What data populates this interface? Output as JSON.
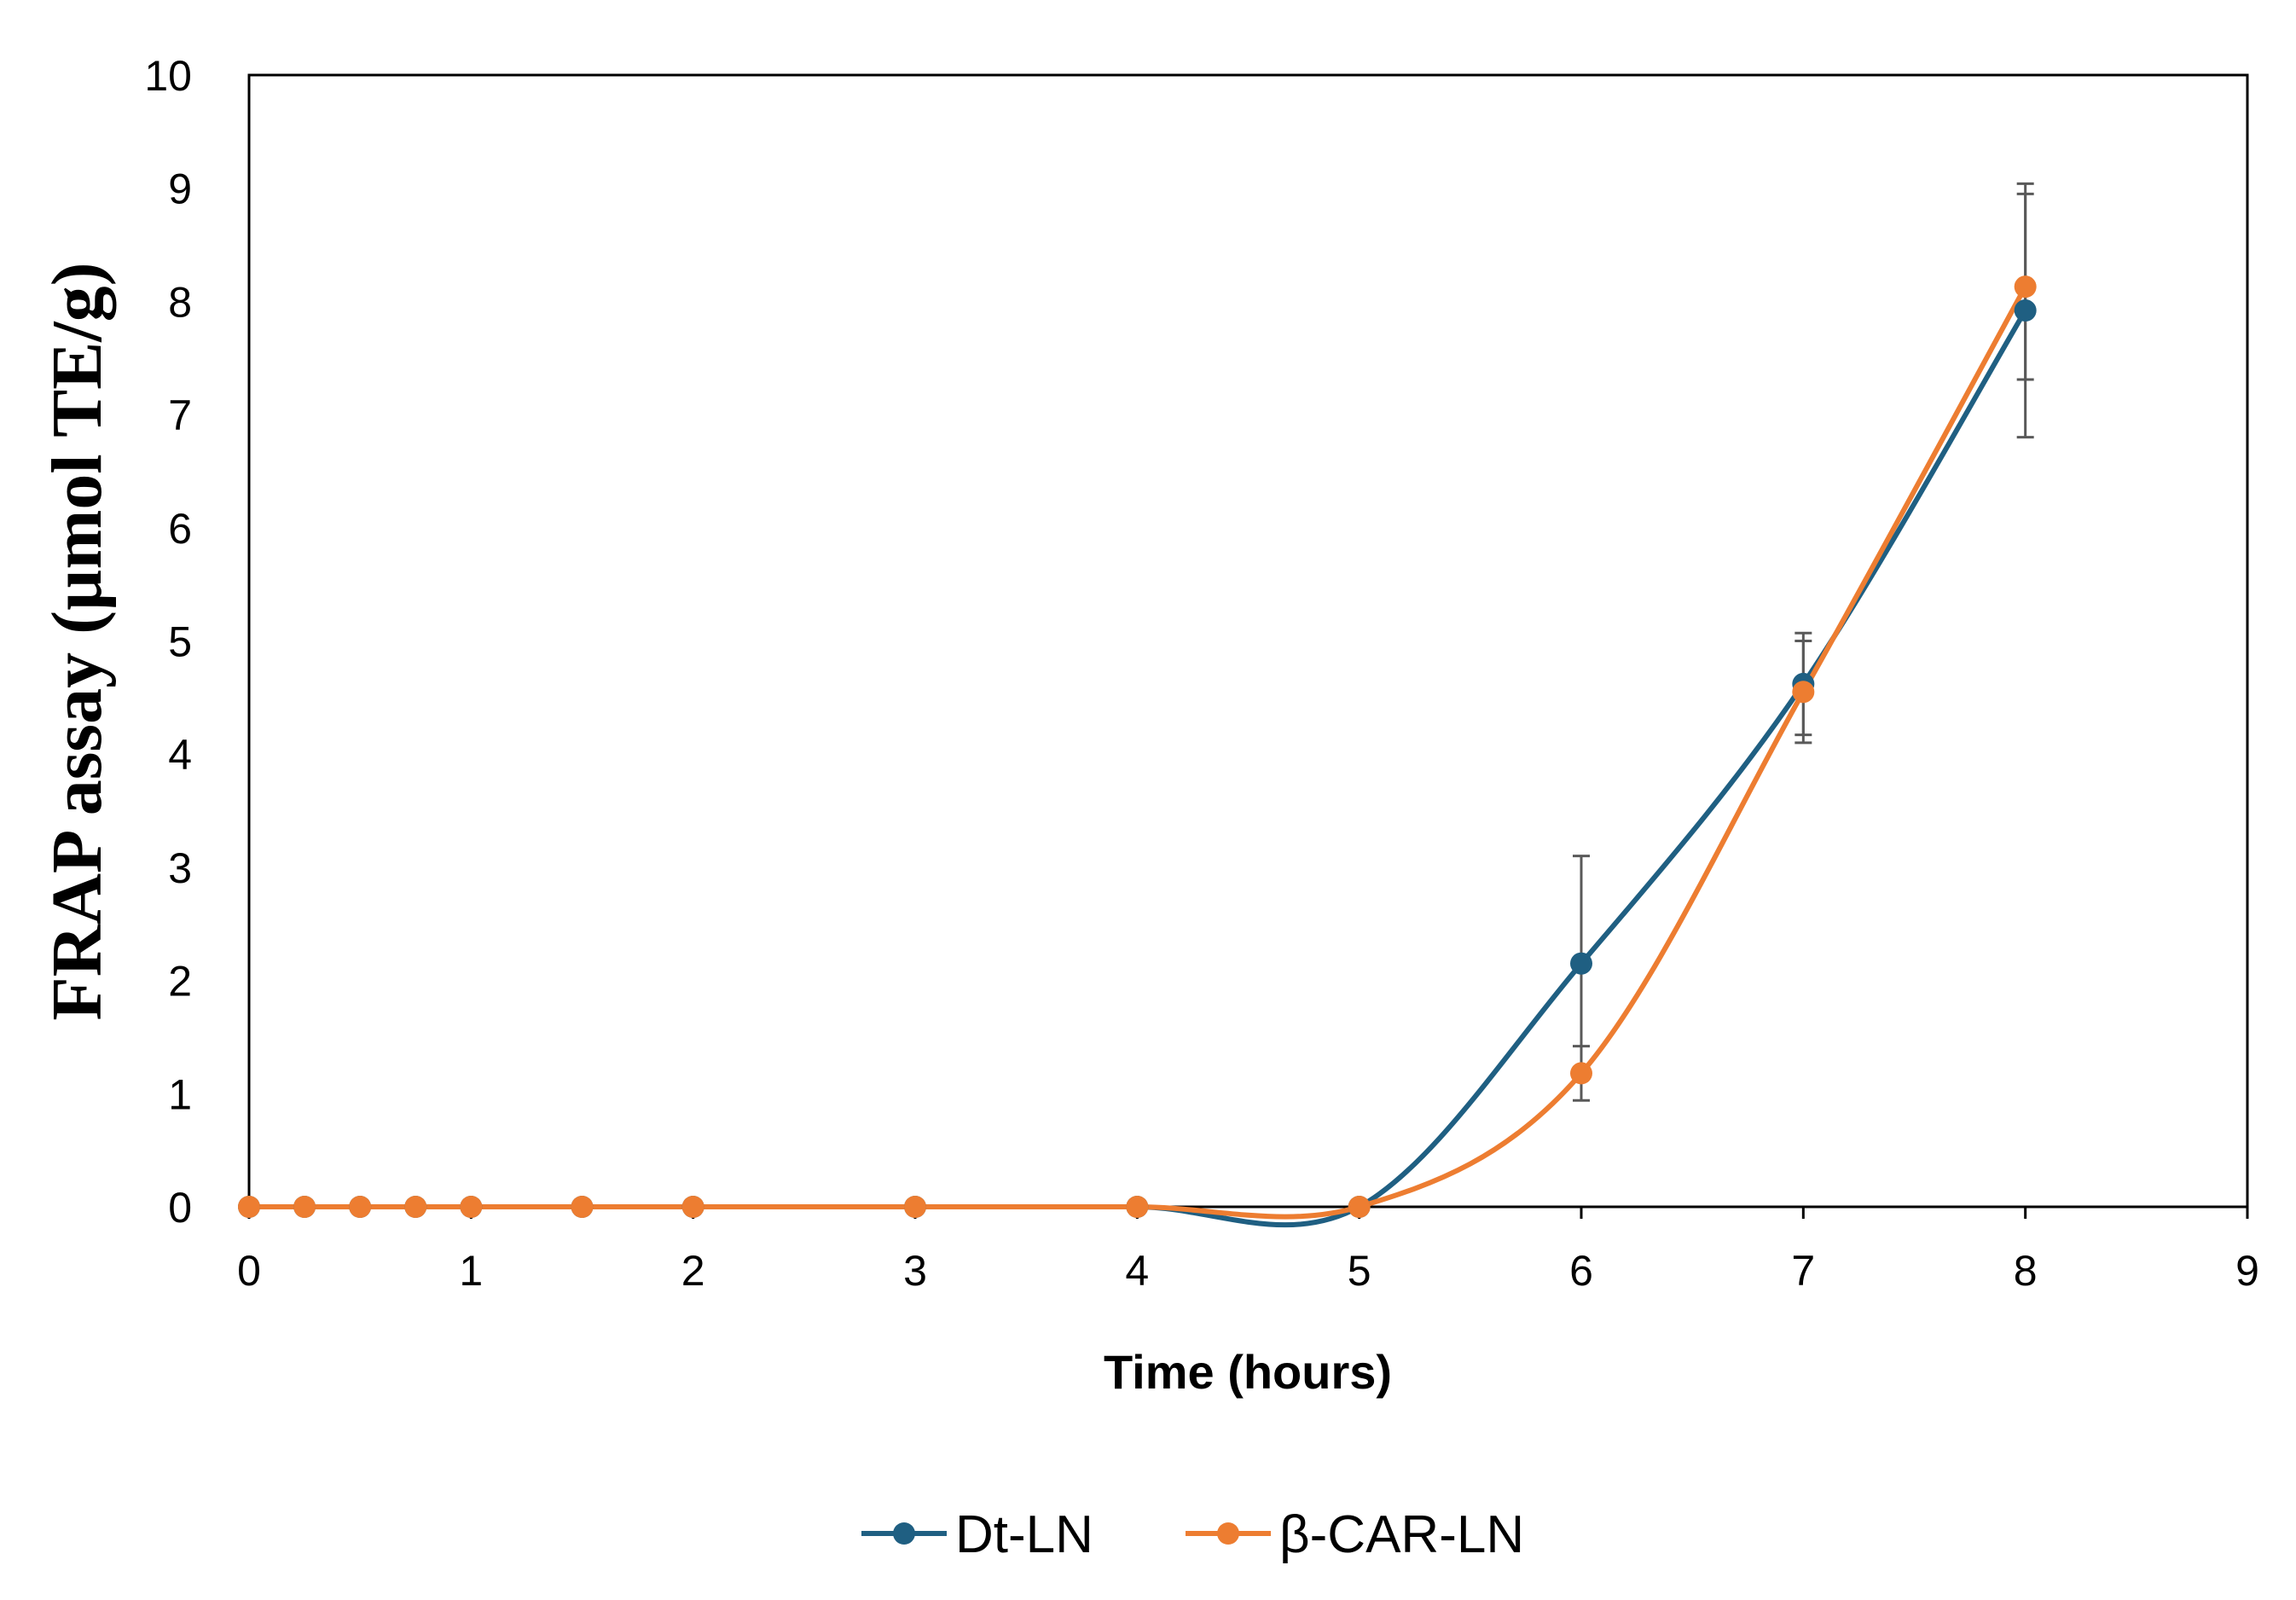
{
  "chart_data": {
    "type": "line",
    "title": "",
    "xlabel": "Time (hours)",
    "ylabel": "FRAP assay (µmol TE/g)",
    "xlim": [
      0,
      9
    ],
    "ylim": [
      0,
      10
    ],
    "xticks": [
      0,
      1,
      2,
      3,
      4,
      5,
      6,
      7,
      8,
      9
    ],
    "yticks": [
      0,
      1,
      2,
      3,
      4,
      5,
      6,
      7,
      8,
      9,
      10
    ],
    "grid": false,
    "smooth": true,
    "legend_position": "bottom",
    "series": [
      {
        "name": "Dt-LN",
        "color": "#1f5f82",
        "x": [
          0,
          0.25,
          0.5,
          0.75,
          1,
          1.5,
          2,
          3,
          4,
          5,
          6,
          7,
          8
        ],
        "y": [
          0,
          0,
          0,
          0,
          0,
          0,
          0,
          0,
          0,
          0,
          2.15,
          4.62,
          7.92
        ],
        "error": [
          null,
          null,
          null,
          null,
          null,
          null,
          null,
          null,
          null,
          null,
          0.95,
          0.45,
          1.12
        ]
      },
      {
        "name": "β-CAR-LN",
        "color": "#ed7d31",
        "x": [
          0,
          0.25,
          0.5,
          0.75,
          1,
          1.5,
          2,
          3,
          4,
          5,
          6,
          7,
          8
        ],
        "y": [
          0,
          0,
          0,
          0,
          0,
          0,
          0,
          0,
          0,
          0,
          1.18,
          4.55,
          8.13
        ],
        "error": [
          null,
          null,
          null,
          null,
          null,
          null,
          null,
          null,
          null,
          null,
          0.24,
          0.45,
          0.82
        ]
      }
    ]
  }
}
